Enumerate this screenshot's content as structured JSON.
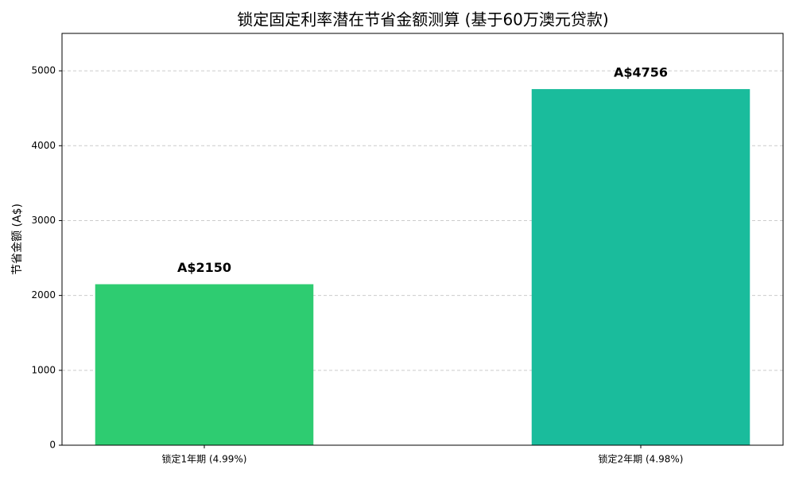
{
  "chart_data": {
    "type": "bar",
    "title": "锁定固定利率潜在节省金额测算 (基于60万澳元贷款)",
    "y_label": "节省金额 (A$)",
    "categories": [
      "锁定1年期 (4.99%)",
      "锁定2年期 (4.98%)"
    ],
    "values": [
      2150,
      4756
    ],
    "value_labels": [
      "A$2150",
      "A$4756"
    ],
    "colors": [
      "#2ecc71",
      "#1abc9c"
    ],
    "ylim": [
      0,
      5500
    ],
    "yticks": [
      0,
      1000,
      2000,
      3000,
      4000,
      5000
    ],
    "grid": true
  }
}
